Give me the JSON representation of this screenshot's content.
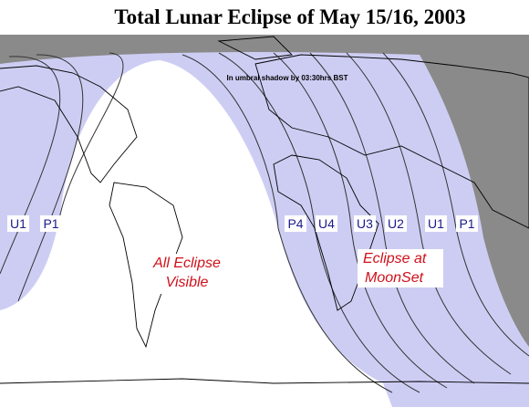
{
  "header": {
    "title": "Total Lunar Eclipse of  May 15/16, 2003"
  },
  "map": {
    "annotation": "In umbral shadow by 03:30hrs BST",
    "contact_labels": [
      "U1",
      "P1",
      "P4",
      "U4",
      "U3",
      "U2",
      "U1",
      "P1"
    ],
    "regions": [
      [
        "All Eclipse",
        "Visible"
      ],
      [
        "Eclipse at",
        "MoonSet"
      ]
    ]
  }
}
